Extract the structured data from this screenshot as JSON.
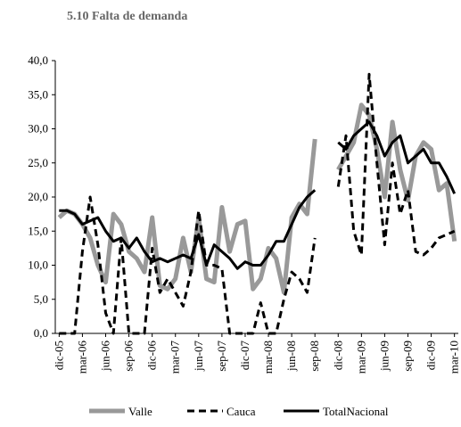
{
  "chart_data": {
    "type": "line",
    "title": "5.10 Falta de demanda",
    "categories": [
      "dic-05",
      null,
      null,
      "mar-06",
      null,
      null,
      "jun-06",
      null,
      null,
      "sep-06",
      null,
      null,
      "dic-06",
      null,
      null,
      "mar-07",
      null,
      null,
      "jun-07",
      null,
      null,
      "sep-07",
      null,
      null,
      "dic-07",
      null,
      null,
      "mar-08",
      null,
      null,
      "jun-08",
      null,
      null,
      "sep-08",
      null,
      null,
      "dic-08",
      null,
      null,
      "mar-09",
      null,
      null,
      "jun-09",
      null,
      null,
      "sep-09",
      null,
      null,
      "dic-09",
      null,
      null,
      "mar-10"
    ],
    "series": [
      {
        "name": "Valle",
        "color": "#999999",
        "dash": false,
        "values": [
          17,
          18,
          17.5,
          16,
          14,
          10,
          7.5,
          17.5,
          16,
          12,
          11,
          9,
          17,
          7,
          6.5,
          8,
          14,
          9,
          17,
          8,
          7.5,
          18.5,
          12,
          16,
          16.5,
          6.5,
          8,
          12.5,
          11,
          6,
          17,
          19,
          17.5,
          28.5,
          null,
          null,
          24,
          26,
          28,
          33.5,
          32,
          27,
          20,
          31,
          24,
          19.5,
          26,
          28,
          27,
          21,
          22,
          13.5
        ]
      },
      {
        "name": "Cauca",
        "color": "#000000",
        "dash": true,
        "values": [
          0,
          0,
          0,
          12,
          20,
          13,
          3,
          0,
          14,
          0,
          0,
          0,
          12.5,
          6,
          8,
          6,
          4,
          9,
          18,
          10,
          10,
          9.5,
          0,
          0,
          0,
          0,
          4.5,
          0,
          0,
          5,
          9,
          8,
          6,
          14,
          null,
          null,
          21.5,
          29,
          15,
          11.5,
          38,
          25,
          13,
          25,
          17.5,
          21,
          12,
          11.5,
          12.5,
          14,
          14.5,
          15
        ]
      },
      {
        "name": "TotalNacional",
        "color": "#000000",
        "dash": false,
        "values": [
          18,
          18,
          17.5,
          16,
          16.5,
          17,
          15,
          13.5,
          14,
          12.5,
          14,
          12,
          10.5,
          11,
          10.5,
          11,
          11.5,
          11,
          14.5,
          10,
          13,
          12,
          11,
          9.5,
          10.5,
          10,
          10,
          11.5,
          13.5,
          13.5,
          16,
          18.5,
          20,
          21,
          null,
          null,
          28,
          27,
          29,
          30,
          31,
          29,
          26,
          28,
          29,
          25,
          26,
          27,
          25,
          25,
          23,
          20.5
        ]
      }
    ],
    "ylim": [
      0,
      40
    ],
    "yticks": [
      {
        "value": 0,
        "label": "0,0"
      },
      {
        "value": 5,
        "label": "5,0"
      },
      {
        "value": 10,
        "label": "10,0"
      },
      {
        "value": 15,
        "label": "15,0"
      },
      {
        "value": 20,
        "label": "20,0"
      },
      {
        "value": 25,
        "label": "25,0"
      },
      {
        "value": 30,
        "label": "30,0"
      },
      {
        "value": 35,
        "label": "35,0"
      },
      {
        "value": 40,
        "label": "40,0"
      }
    ],
    "legend": "bottom"
  }
}
